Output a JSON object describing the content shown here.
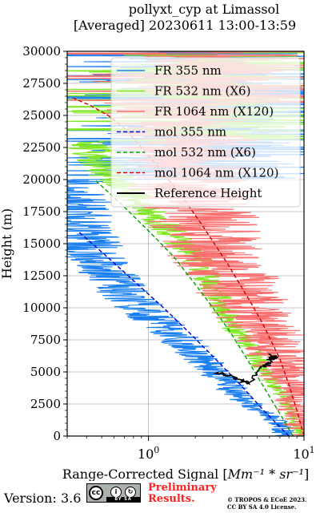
{
  "chart_data": {
    "type": "line",
    "title": "pollyxt_cyp at Limassol",
    "subtitle": "[Averaged] 20230611 13:00-13:59",
    "xlabel_prefix": "Range-Corrected Signal [",
    "xlabel_math": "Mm⁻¹ * sr⁻¹",
    "xlabel_suffix": "]",
    "ylabel": "Height (m)",
    "xscale": "log",
    "xlim": [
      0.3,
      10
    ],
    "ylim": [
      0,
      30000
    ],
    "grid": true,
    "legend_position": "top-right",
    "x_ticks": [
      {
        "value": 1,
        "label": "10",
        "exp": "0"
      },
      {
        "value": 10,
        "label": "10",
        "exp": "1"
      }
    ],
    "y_ticks": [
      {
        "value": 0,
        "label": "0"
      },
      {
        "value": 2500,
        "label": "2500"
      },
      {
        "value": 5000,
        "label": "5000"
      },
      {
        "value": 7500,
        "label": "7500"
      },
      {
        "value": 10000,
        "label": "10000"
      },
      {
        "value": 12500,
        "label": "12500"
      },
      {
        "value": 15000,
        "label": "15000"
      },
      {
        "value": 17500,
        "label": "17500"
      },
      {
        "value": 20000,
        "label": "20000"
      },
      {
        "value": 22500,
        "label": "22500"
      },
      {
        "value": 25000,
        "label": "25000"
      },
      {
        "value": 27500,
        "label": "27500"
      },
      {
        "value": 30000,
        "label": "30000"
      }
    ],
    "series": [
      {
        "name": "FR 355 nm",
        "color": "#1a7ff0",
        "style": "solid",
        "noise": 0.55,
        "x": [
          7.0,
          7.5,
          4.5,
          3.2,
          2.4,
          2.0,
          1.6,
          1.25,
          1.0,
          0.8,
          0.6,
          0.45,
          0.35,
          0.3
        ],
        "y": [
          0,
          800,
          2500,
          4000,
          5500,
          6500,
          7500,
          8500,
          9500,
          10500,
          12000,
          14000,
          17000,
          20000
        ]
      },
      {
        "name": "FR 532 nm (X6)",
        "color": "#7ee81e",
        "style": "solid",
        "noise": 0.3,
        "x": [
          9.5,
          8.5,
          7.5,
          6.0,
          5.0,
          4.2,
          3.5,
          3.0,
          2.6,
          2.2,
          1.8,
          1.4,
          1.0,
          0.6,
          0.4
        ],
        "y": [
          0,
          1500,
          3000,
          4500,
          6000,
          7500,
          8500,
          10000,
          11500,
          13000,
          14500,
          16000,
          17500,
          20000,
          23000
        ]
      },
      {
        "name": "FR 1064 nm (X120)",
        "color": "#fa6e6e",
        "style": "solid",
        "noise": 0.9,
        "x": [
          10,
          9.5,
          9.0,
          8.0,
          7.0,
          6.0,
          5.0,
          4.2,
          3.6,
          3.0,
          2.5,
          2.0,
          1.8,
          1.6
        ],
        "y": [
          0,
          1500,
          3000,
          4500,
          6000,
          7500,
          9000,
          10500,
          12000,
          13500,
          15000,
          18000,
          22000,
          26000
        ]
      },
      {
        "name": "mol 355 nm",
        "color": "#0000d0",
        "style": "dashed",
        "x": [
          8.0,
          5.5,
          3.9,
          2.7,
          1.85,
          1.25,
          0.82,
          0.54,
          0.35
        ],
        "y": [
          0,
          2000,
          4000,
          6000,
          8000,
          10000,
          12000,
          14000,
          16000
        ]
      },
      {
        "name": "mol 532 nm (X6)",
        "color": "#00a000",
        "style": "dashed",
        "x": [
          8.5,
          6.8,
          5.4,
          4.3,
          3.4,
          2.6,
          1.95,
          1.45,
          1.0,
          0.68,
          0.45
        ],
        "y": [
          0,
          2000,
          4000,
          6000,
          8000,
          10000,
          12000,
          14000,
          16000,
          18000,
          20000
        ]
      },
      {
        "name": "mol 1064 nm (X120)",
        "color": "#d00000",
        "style": "dashed",
        "x": [
          10.0,
          9.0,
          8.0,
          7.0,
          6.1,
          5.3,
          4.5,
          3.8,
          3.2,
          2.65,
          2.2,
          1.8,
          1.45,
          1.15,
          0.9,
          0.7,
          0.55,
          0.42,
          0.32
        ],
        "y": [
          0,
          2000,
          4000,
          6000,
          7500,
          9000,
          10500,
          12000,
          13500,
          15000,
          16500,
          18000,
          19500,
          21000,
          22500,
          24000,
          25000,
          25800,
          26400
        ]
      },
      {
        "name": "Reference Height",
        "color": "#000000",
        "style": "solid",
        "noise": 0.05,
        "x": [
          2.7,
          3.3,
          3.9,
          4.5,
          5.2,
          5.8,
          6.1,
          6.4,
          6.6,
          6.0
        ],
        "y": [
          5000,
          4750,
          4400,
          4100,
          5200,
          5600,
          5900,
          6200,
          6000,
          6400
        ]
      }
    ]
  },
  "footer": {
    "version": "Version: 3.6",
    "cc_label": "cc",
    "cc_by": "i",
    "cc_sa": "↻",
    "cc_strip": "BY SA",
    "prelim_line1": "Preliminary",
    "prelim_line2": "Results.",
    "copyright_line1": "© TROPOS & ECoE 2023.",
    "copyright_line2": "CC BY SA 4.0 License."
  }
}
